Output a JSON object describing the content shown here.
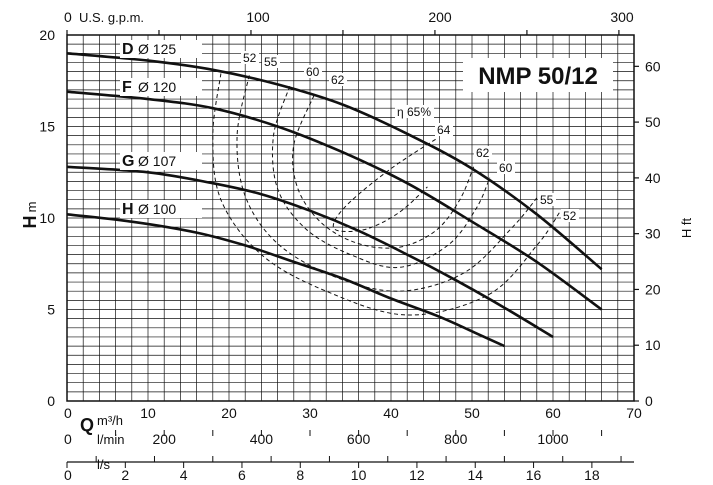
{
  "chart_data": {
    "type": "line",
    "title": "NMP 50/12",
    "x": {
      "label": "Q",
      "unit_m3h": "m³/h",
      "unit_lmin": "l/min",
      "unit_ls": "l/s",
      "unit_gpm": "U.S. g.p.m.",
      "range_m3h": [
        0,
        70
      ],
      "ticks_m3h": [
        "0",
        "10",
        "20",
        "30",
        "40",
        "50",
        "60",
        "70"
      ],
      "ticks_lmin": [
        "0",
        "200",
        "400",
        "600",
        "800",
        "1000"
      ],
      "ticks_ls": [
        "0",
        "2",
        "4",
        "6",
        "8",
        "10",
        "12",
        "14",
        "16",
        "18"
      ],
      "ticks_gpm": [
        "0",
        "100",
        "200",
        "300"
      ]
    },
    "y": {
      "label_m": "H",
      "unit_m": "m",
      "label_ft": "H ft",
      "range_m": [
        0,
        20
      ],
      "ticks_m": [
        "0",
        "5",
        "10",
        "15",
        "20"
      ],
      "ticks_ft": [
        "0",
        "10",
        "20",
        "30",
        "40",
        "50",
        "60"
      ]
    },
    "grid": true,
    "series": [
      {
        "letter": "D",
        "diameter": "Ø 125",
        "x": [
          0,
          10,
          18,
          26,
          34,
          42,
          50,
          58,
          66
        ],
        "y": [
          19.0,
          18.6,
          18.1,
          17.3,
          16.2,
          14.6,
          12.7,
          10.2,
          7.2
        ]
      },
      {
        "letter": "F",
        "diameter": "Ø 120",
        "x": [
          0,
          10,
          18,
          26,
          34,
          42,
          50,
          58,
          66
        ],
        "y": [
          16.9,
          16.5,
          16.0,
          15.0,
          13.6,
          11.9,
          9.8,
          7.6,
          5.0
        ]
      },
      {
        "letter": "G",
        "diameter": "Ø 107",
        "x": [
          0,
          10,
          18,
          24,
          30,
          36,
          42,
          48,
          54,
          60
        ],
        "y": [
          12.8,
          12.5,
          11.9,
          11.3,
          10.4,
          9.3,
          8.0,
          6.6,
          5.1,
          3.5
        ]
      },
      {
        "letter": "H",
        "diameter": "Ø 100",
        "x": [
          0,
          8,
          16,
          22,
          28,
          34,
          40,
          46,
          51,
          54
        ],
        "y": [
          10.2,
          9.8,
          9.2,
          8.5,
          7.6,
          6.7,
          5.6,
          4.6,
          3.6,
          3.0
        ]
      }
    ],
    "efficiency_labels": [
      "52",
      "55",
      "60",
      "62",
      "η 65%",
      "64",
      "62",
      "60",
      "55",
      "52"
    ],
    "efficiency_curves": [
      {
        "label": "52",
        "x": [
          19.0,
          18.0,
          19.0,
          24.0,
          32.0,
          42.0,
          52.0,
          58.0,
          60.8
        ],
        "y": [
          17.9,
          14.5,
          11.0,
          8.0,
          6.0,
          4.7,
          5.8,
          8.5,
          10.3
        ]
      },
      {
        "label": "55",
        "x": [
          22.5,
          21.0,
          22.0,
          26.0,
          33.0,
          41.0,
          49.0,
          55.0,
          58.0
        ],
        "y": [
          17.8,
          14.5,
          11.2,
          8.6,
          6.8,
          6.0,
          7.0,
          9.5,
          11.1
        ]
      },
      {
        "label": "60",
        "x": [
          27.5,
          25.5,
          26.0,
          29.5,
          35.0,
          41.0,
          47.0,
          50.5,
          52.2
        ],
        "y": [
          17.2,
          14.5,
          11.6,
          9.4,
          8.0,
          7.3,
          8.5,
          10.5,
          12.2
        ]
      },
      {
        "label": "62",
        "x": [
          30.5,
          28.0,
          28.5,
          31.5,
          36.0,
          41.0,
          45.5,
          48.5,
          50.2
        ],
        "y": [
          16.7,
          14.0,
          11.6,
          9.7,
          8.6,
          8.4,
          9.3,
          11.0,
          12.8
        ]
      },
      {
        "label": "64",
        "x": [
          45.5,
          40.0,
          35.0,
          33.0,
          33.5,
          37.0,
          41.0,
          44.5
        ],
        "y": [
          14.3,
          12.7,
          10.9,
          9.8,
          9.3,
          9.4,
          10.3,
          11.7
        ]
      }
    ]
  }
}
